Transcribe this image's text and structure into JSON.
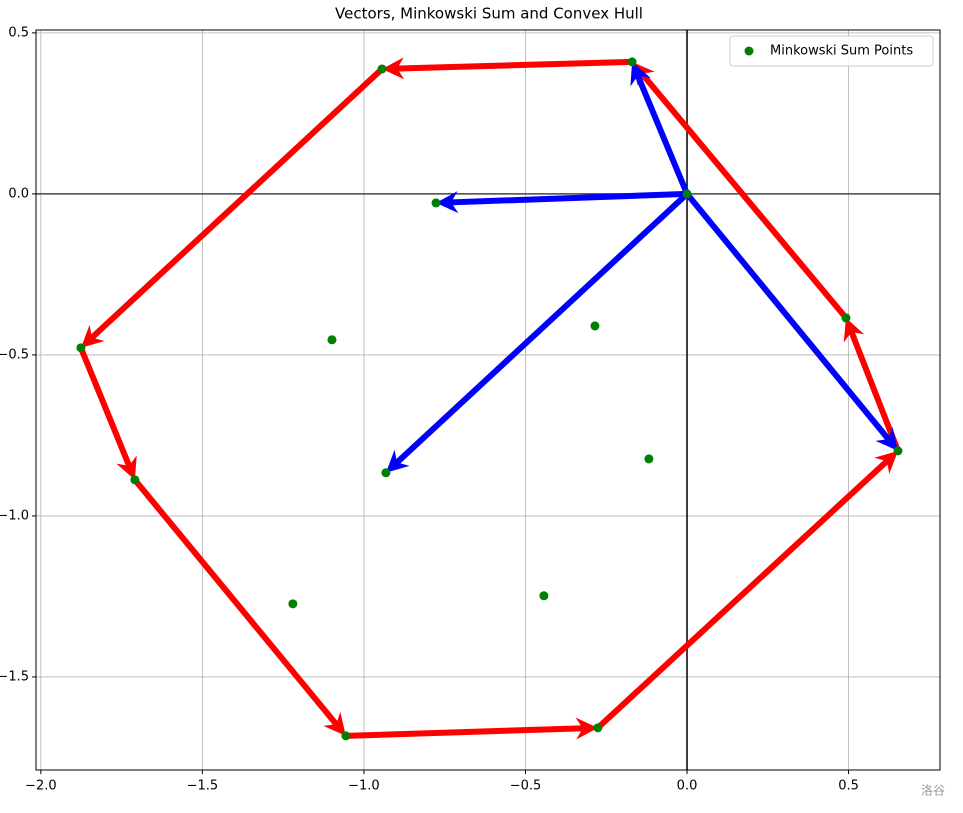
{
  "chart_data": {
    "type": "quiver",
    "title": "Vectors, Minkowski Sum and Convex Hull",
    "points": {
      "name": "Minkowski Sum Points",
      "color": "#008000",
      "x": [
        0,
        -0.17,
        -0.944,
        -0.777,
        -1.876,
        -1.099,
        -0.285,
        0.492,
        0.653,
        -0.932,
        -0.118,
        -1.709,
        -1.22,
        -0.443,
        -1.056,
        -0.276
      ],
      "y": [
        0,
        0.41,
        0.388,
        -0.028,
        -0.478,
        -0.453,
        -0.41,
        -0.385,
        -0.798,
        -0.866,
        -0.823,
        -0.888,
        -1.273,
        -1.248,
        -1.683,
        -1.658
      ]
    },
    "vectors": {
      "color": "#0000ff",
      "x": [
        -0.17,
        -0.777,
        -0.932,
        0.653
      ],
      "y": [
        0.41,
        -0.028,
        -0.866,
        -0.798
      ]
    },
    "hull": {
      "color": "#ff0000",
      "x": [
        0.653,
        0.492,
        -0.17,
        -0.944,
        -1.876,
        -1.709,
        -1.056,
        -0.276
      ],
      "y": [
        -0.798,
        -0.385,
        0.41,
        0.388,
        -0.478,
        -0.888,
        -1.683,
        -1.658
      ]
    },
    "hline": 0,
    "vline": 0,
    "xlim": [
      -2.015,
      0.783
    ],
    "ylim": [
      -1.789,
      0.509
    ],
    "xticks": [
      {
        "value": -2,
        "label": "−2.0"
      },
      {
        "value": -1.5,
        "label": "−1.5"
      },
      {
        "value": -1,
        "label": "−1.0"
      },
      {
        "value": -0.5,
        "label": "−0.5"
      },
      {
        "value": 0,
        "label": "0.0"
      },
      0.5
    ],
    "yticks": [
      0.5,
      {
        "value": 0,
        "label": "0.0"
      },
      {
        "value": -0.5,
        "label": "−0.5"
      },
      {
        "value": -1,
        "label": "−1.0"
      },
      {
        "value": -1.5,
        "label": "−1.5"
      }
    ],
    "grid": true,
    "legend": "upper right",
    "watermark": "洛谷"
  }
}
